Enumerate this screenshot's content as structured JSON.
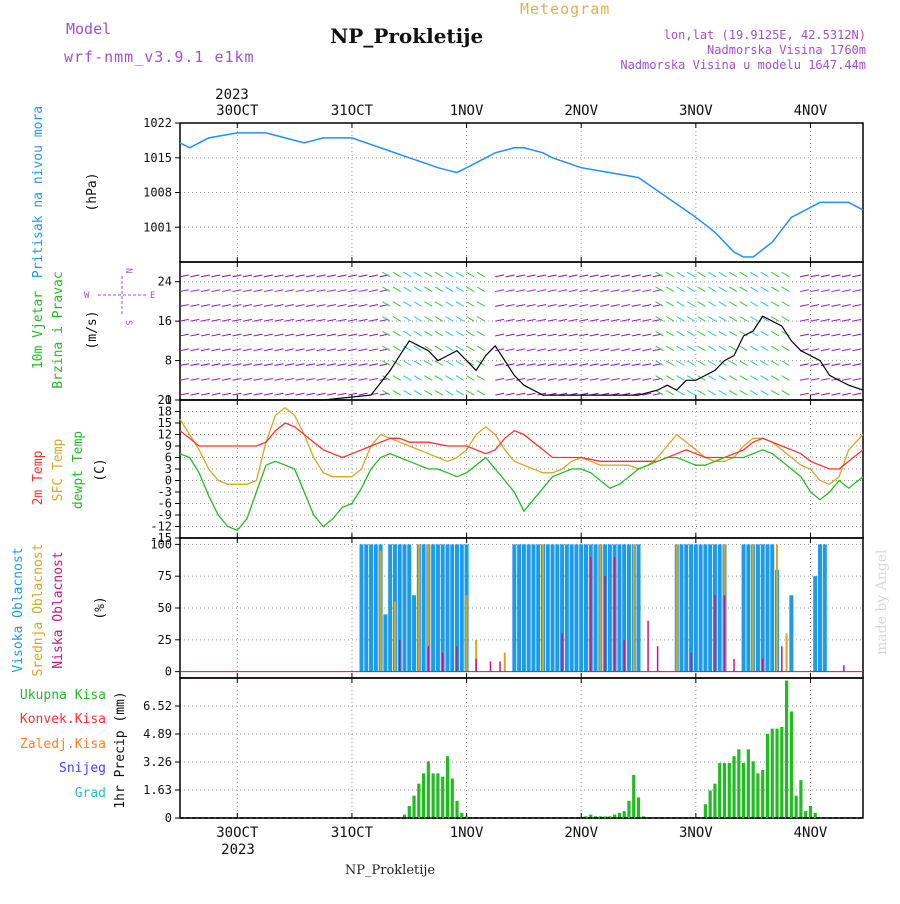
{
  "header": {
    "model_label": "Model",
    "model_name": "wrf-nmm_v3.9.1 e1km",
    "meteogram_label": "Meteogram",
    "title": "NP_Prokletije",
    "location": "lon,lat (19.9125E, 42.5312N)",
    "altitude": "Nadmorska Visina 1760m",
    "model_altitude": "Nadmorska Visina u modelu 1647.44m",
    "footer_title": "NP_Prokletije",
    "watermark": "made by Angel"
  },
  "colors": {
    "pressure": "#1e90ff",
    "temp_2m": "#ff3030",
    "temp_sfc": "#daa520",
    "dewpoint": "#22bb22",
    "cloud_high": "#1e9be8",
    "cloud_mid": "#daa520",
    "cloud_low": "#c71585",
    "precip_total": "#22bb22",
    "precip_conv": "#ff3030",
    "precip_frz": "#ff7f24",
    "snow": "#4040ff",
    "hail": "#20c0c0",
    "header_purple": "#a050d0",
    "header_orange": "#e0b050"
  },
  "time_axis": {
    "top_year": "2023",
    "bottom_year": "2023",
    "day_labels": [
      "30OCT",
      "31OCT",
      "1NOV",
      "2NOV",
      "3NOV",
      "4NOV"
    ]
  },
  "panels": {
    "pressure": {
      "ylabel": "Pritisak na nivou mora",
      "unit": "(hPa)",
      "ticks": [
        "1022",
        "1015",
        "1008",
        "1001"
      ]
    },
    "wind": {
      "ylabel1": "10m Vjetar",
      "ylabel2": "Brzina i Pravac",
      "unit": "(m/s)",
      "ticks": [
        "24",
        "16",
        "8",
        "0"
      ],
      "compass_n": "N",
      "compass_s": "S",
      "compass_w": "W",
      "compass_e": "E"
    },
    "temp": {
      "ylabel1": "2m Temp",
      "ylabel2": "SFC Temp",
      "ylabel3": "dewpt Temp",
      "unit": "(C)",
      "ticks": [
        "21",
        "18",
        "15",
        "12",
        "9",
        "6",
        "3",
        "0",
        "-3",
        "-6",
        "-9",
        "-12",
        "-15"
      ]
    },
    "cloud": {
      "ylabel1": "Visoka Oblacnost",
      "ylabel2": "Srednja Oblacnost",
      "ylabel3": "Niska Oblacnost",
      "unit": "(%)",
      "ticks": [
        "100",
        "75",
        "50",
        "25",
        "0"
      ]
    },
    "precip": {
      "legend": [
        "Ukupna Kisa",
        "Konvek.Kisa",
        "Zaledj.Kisa",
        "Snijeg",
        "Grad"
      ],
      "unit": "1hr Precip (mm)",
      "ticks": [
        "6.52",
        "4.89",
        "3.26",
        "1.63",
        "0"
      ]
    }
  },
  "chart_data": [
    {
      "type": "line",
      "title": "Pritisak na nivou mora",
      "ylabel": "(hPa)",
      "ylim": [
        994,
        1022
      ],
      "x_unit": "hours from 2023-10-29 12:00 UTC",
      "xlim": [
        0,
        143
      ],
      "grid": true,
      "series": [
        {
          "name": "Pritisak na nivou mora",
          "x": [
            0,
            2,
            6,
            12,
            18,
            22,
            26,
            30,
            36,
            42,
            48,
            54,
            58,
            60,
            64,
            66,
            70,
            72,
            76,
            78,
            84,
            90,
            96,
            102,
            108,
            112,
            116,
            118,
            120,
            124,
            128,
            134,
            140,
            143
          ],
          "values": [
            1018,
            1017,
            1019,
            1020,
            1020,
            1019,
            1018,
            1019,
            1019,
            1017,
            1015,
            1013,
            1012,
            1013,
            1015,
            1016,
            1017,
            1017,
            1016,
            1015,
            1013,
            1012,
            1011,
            1007,
            1003,
            1000,
            996,
            995,
            995,
            998,
            1003,
            1006,
            1006,
            1004.5
          ]
        }
      ]
    },
    {
      "type": "line",
      "title": "10m Vjetar Brzina i Pravac",
      "ylabel": "(m/s)",
      "ylim": [
        0,
        28
      ],
      "xlim": [
        0,
        143
      ],
      "grid": true,
      "series": [
        {
          "name": "10m Vjetar",
          "x": [
            0,
            10,
            20,
            30,
            40,
            44,
            46,
            48,
            50,
            52,
            54,
            56,
            58,
            60,
            62,
            64,
            66,
            68,
            70,
            72,
            74,
            76,
            78,
            80,
            84,
            88,
            92,
            96,
            100,
            102,
            104,
            106,
            108,
            110,
            112,
            114,
            116,
            118,
            120,
            122,
            124,
            126,
            128,
            130,
            132,
            134,
            136,
            138,
            140,
            143
          ],
          "values": [
            0,
            0,
            0,
            0,
            1,
            6,
            9,
            12,
            11,
            10,
            8,
            9,
            10,
            8,
            6,
            9,
            11,
            8,
            5,
            3,
            2,
            1,
            1,
            1,
            1,
            1,
            1,
            1,
            2,
            3,
            2,
            4,
            4,
            5,
            6,
            8,
            9,
            13,
            14,
            17,
            16,
            15,
            12,
            10,
            9,
            8,
            5,
            4,
            3,
            2
          ]
        }
      ]
    },
    {
      "type": "line",
      "title": "2m / SFC / dewpt Temp",
      "ylabel": "(C)",
      "ylim": [
        -15,
        21
      ],
      "xlim": [
        0,
        143
      ],
      "grid": true,
      "series": [
        {
          "name": "2m Temp",
          "x": [
            0,
            2,
            4,
            6,
            8,
            12,
            16,
            18,
            20,
            22,
            24,
            26,
            28,
            30,
            32,
            34,
            36,
            38,
            40,
            42,
            44,
            46,
            48,
            52,
            56,
            60,
            62,
            64,
            66,
            68,
            70,
            72,
            74,
            76,
            78,
            80,
            82,
            84,
            88,
            92,
            96,
            100,
            102,
            104,
            106,
            108,
            110,
            112,
            114,
            116,
            118,
            120,
            122,
            124,
            126,
            128,
            130,
            132,
            134,
            136,
            138,
            140,
            143
          ],
          "values": [
            13,
            11,
            9,
            9,
            9,
            9,
            9,
            10,
            13,
            15,
            14,
            12,
            10,
            8,
            7,
            6,
            7,
            8,
            9,
            10,
            11,
            11,
            10,
            10,
            9,
            9,
            8,
            7,
            8,
            11,
            13,
            12,
            10,
            8,
            6,
            6,
            6,
            6,
            5,
            5,
            5,
            5,
            6,
            7,
            8,
            7,
            6,
            6,
            6,
            7,
            8,
            10,
            11,
            10,
            9,
            8,
            7,
            5,
            4,
            3,
            3,
            5,
            8
          ]
        },
        {
          "name": "SFC Temp",
          "x": [
            0,
            2,
            4,
            6,
            8,
            10,
            12,
            14,
            16,
            18,
            20,
            22,
            24,
            26,
            28,
            30,
            32,
            34,
            36,
            38,
            40,
            42,
            44,
            46,
            48,
            50,
            52,
            54,
            56,
            58,
            60,
            62,
            64,
            66,
            68,
            70,
            72,
            74,
            76,
            78,
            80,
            82,
            84,
            86,
            88,
            90,
            92,
            94,
            96,
            98,
            100,
            102,
            104,
            106,
            108,
            110,
            112,
            114,
            116,
            118,
            120,
            122,
            124,
            126,
            128,
            130,
            132,
            134,
            136,
            138,
            140,
            143
          ],
          "values": [
            16,
            12,
            8,
            3,
            0,
            -1,
            -1,
            -1,
            0,
            10,
            17,
            19,
            17,
            12,
            6,
            2,
            1,
            1,
            1,
            3,
            9,
            12,
            11,
            10,
            9,
            8,
            7,
            6,
            5,
            6,
            8,
            12,
            14,
            12,
            8,
            5,
            4,
            3,
            2,
            2,
            3,
            5,
            6,
            5,
            4,
            4,
            4,
            4,
            3,
            4,
            6,
            9,
            12,
            10,
            8,
            6,
            5,
            5,
            6,
            9,
            11,
            11,
            10,
            8,
            6,
            4,
            3,
            0,
            -1,
            1,
            8,
            12
          ]
        },
        {
          "name": "dewpt Temp",
          "x": [
            0,
            2,
            4,
            6,
            8,
            10,
            12,
            14,
            16,
            18,
            20,
            22,
            24,
            26,
            28,
            30,
            32,
            34,
            36,
            38,
            40,
            42,
            44,
            46,
            48,
            50,
            52,
            54,
            56,
            58,
            60,
            62,
            64,
            66,
            68,
            70,
            72,
            74,
            76,
            78,
            80,
            82,
            84,
            86,
            88,
            90,
            92,
            94,
            96,
            98,
            100,
            102,
            104,
            106,
            108,
            110,
            112,
            114,
            116,
            118,
            120,
            122,
            124,
            126,
            128,
            130,
            132,
            134,
            136,
            138,
            140,
            143
          ],
          "values": [
            7,
            6,
            2,
            -4,
            -9,
            -12,
            -13,
            -10,
            -3,
            4,
            5,
            4,
            3,
            -3,
            -9,
            -12,
            -10,
            -7,
            -6,
            -2,
            3,
            6,
            7,
            6,
            5,
            4,
            3,
            3,
            2,
            1,
            2,
            4,
            6,
            3,
            0,
            -3,
            -8,
            -5,
            -2,
            1,
            2,
            3,
            3,
            2,
            0,
            -2,
            -1,
            1,
            3,
            4,
            5,
            6,
            6,
            5,
            4,
            4,
            5,
            6,
            6,
            6,
            7,
            8,
            7,
            5,
            3,
            1,
            -3,
            -5,
            -3,
            0,
            -2,
            1
          ]
        }
      ]
    },
    {
      "type": "bar",
      "title": "Oblacnost",
      "ylabel": "(%)",
      "ylim": [
        0,
        100
      ],
      "xlim": [
        0,
        143
      ],
      "grid": true,
      "series": [
        {
          "name": "Visoka Oblacnost",
          "x": [
            38,
            39,
            40,
            41,
            42,
            43,
            44,
            45,
            46,
            47,
            48,
            49,
            50,
            51,
            52,
            53,
            54,
            55,
            56,
            57,
            58,
            59,
            60,
            70,
            71,
            72,
            73,
            74,
            75,
            76,
            77,
            78,
            79,
            80,
            81,
            82,
            83,
            84,
            85,
            86,
            87,
            88,
            89,
            90,
            91,
            92,
            93,
            94,
            95,
            96,
            104,
            105,
            106,
            107,
            108,
            109,
            110,
            111,
            112,
            113,
            114,
            118,
            119,
            120,
            121,
            122,
            123,
            124,
            125,
            128,
            133,
            134,
            135
          ],
          "values": [
            100,
            100,
            100,
            100,
            100,
            45,
            100,
            100,
            100,
            100,
            100,
            60,
            100,
            100,
            100,
            100,
            100,
            100,
            100,
            100,
            100,
            100,
            100,
            100,
            100,
            100,
            100,
            100,
            100,
            100,
            100,
            100,
            100,
            100,
            100,
            100,
            100,
            100,
            100,
            100,
            100,
            100,
            100,
            100,
            100,
            100,
            100,
            100,
            100,
            100,
            100,
            100,
            100,
            100,
            100,
            100,
            100,
            100,
            100,
            100,
            100,
            100,
            100,
            100,
            100,
            100,
            100,
            100,
            80,
            60,
            75,
            100,
            100
          ]
        },
        {
          "name": "Srednja Oblacnost",
          "x": [
            42,
            45,
            50,
            52,
            60,
            62,
            68,
            76,
            88,
            95,
            104,
            114,
            120,
            125,
            127
          ],
          "values": [
            95,
            55,
            100,
            100,
            60,
            25,
            15,
            100,
            100,
            100,
            100,
            100,
            100,
            100,
            30
          ]
        },
        {
          "name": "Niska Oblacnost",
          "x": [
            46,
            52,
            55,
            58,
            62,
            65,
            67,
            80,
            86,
            89,
            91,
            93,
            98,
            100,
            107,
            112,
            114,
            116,
            122,
            126,
            139
          ],
          "values": [
            25,
            20,
            15,
            20,
            10,
            8,
            8,
            30,
            90,
            75,
            90,
            25,
            40,
            20,
            15,
            60,
            60,
            10,
            10,
            20,
            5
          ]
        }
      ]
    },
    {
      "type": "bar",
      "title": "1hr Precip",
      "ylabel": "1hr Precip (mm)",
      "ylim": [
        0,
        8.15
      ],
      "xlim": [
        0,
        143
      ],
      "grid": true,
      "series": [
        {
          "name": "Ukupna Kisa",
          "x": [
            47,
            48,
            49,
            50,
            51,
            52,
            53,
            54,
            55,
            56,
            57,
            58,
            59,
            60,
            85,
            86,
            87,
            88,
            89,
            90,
            91,
            92,
            93,
            94,
            95,
            96,
            97,
            110,
            111,
            112,
            113,
            114,
            115,
            116,
            117,
            118,
            119,
            120,
            121,
            122,
            123,
            124,
            125,
            126,
            127,
            128,
            129,
            130,
            131,
            132,
            133
          ],
          "values": [
            0.2,
            0.7,
            1.3,
            2.0,
            2.6,
            3.3,
            2.6,
            2.6,
            2.4,
            3.6,
            2.3,
            1.0,
            0.3,
            0.1,
            0.1,
            0.2,
            0.1,
            0.1,
            0.1,
            0.1,
            0.2,
            0.3,
            0.4,
            1.0,
            2.5,
            1.2,
            0.1,
            0.8,
            1.6,
            2.0,
            3.2,
            3.2,
            3.2,
            3.6,
            4.0,
            3.2,
            4.0,
            3.3,
            2.6,
            2.8,
            4.9,
            5.2,
            5.2,
            5.3,
            8.0,
            6.2,
            1.3,
            2.2,
            0.4,
            0.7,
            0.3
          ]
        },
        {
          "name": "Konvek.Kisa",
          "x": [],
          "values": []
        },
        {
          "name": "Zaledj.Kisa",
          "x": [],
          "values": []
        },
        {
          "name": "Snijeg",
          "x": [],
          "values": []
        },
        {
          "name": "Grad",
          "x": [],
          "values": []
        }
      ]
    }
  ]
}
